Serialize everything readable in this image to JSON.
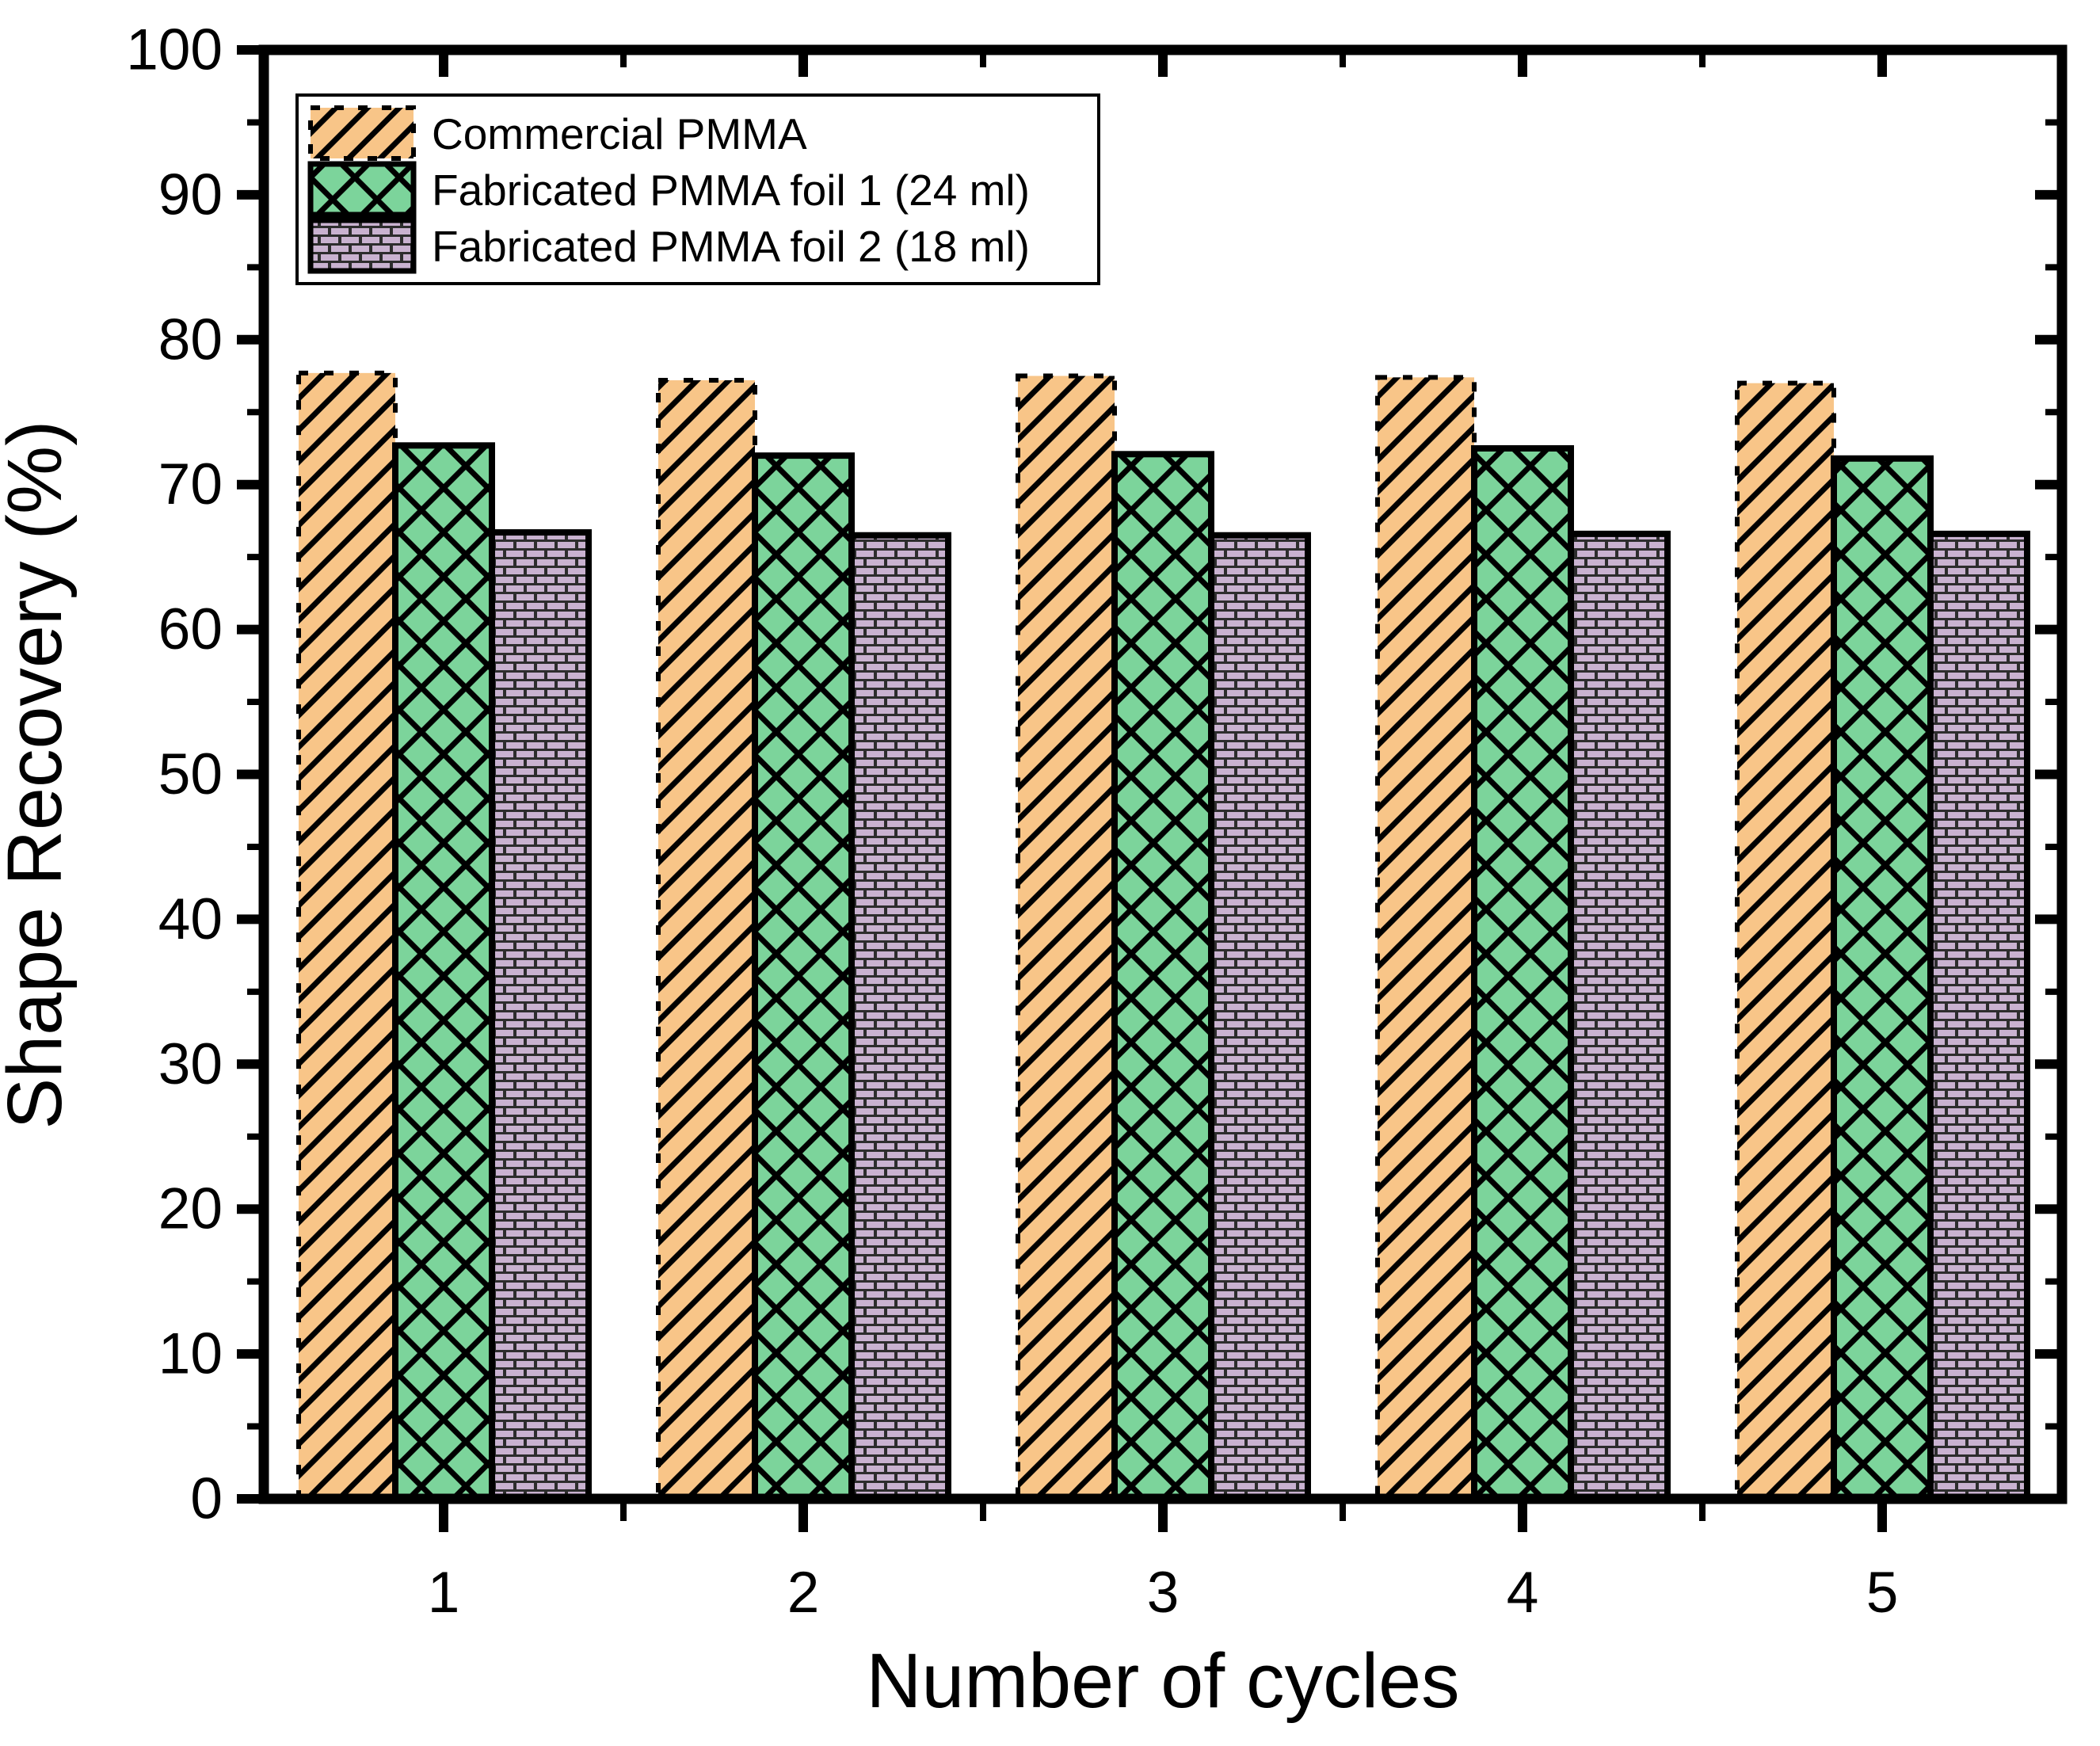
{
  "figure": {
    "background": "#ffffff",
    "axis_color": "#000000",
    "text_color": "#000000"
  },
  "chart_data": {
    "type": "bar",
    "title": "",
    "xlabel": "Number of cycles",
    "ylabel": "Shape Recovery (%)",
    "categories": [
      "1",
      "2",
      "3",
      "4",
      "5"
    ],
    "series": [
      {
        "name": "Commercial PMMA",
        "values": [
          77.7,
          77.2,
          77.5,
          77.4,
          77.0
        ],
        "fill": "#F8C588",
        "pattern": "diagonal-hatch",
        "border": "dashed"
      },
      {
        "name": "Fabricated PMMA foil 1 (24 ml)",
        "values": [
          72.7,
          72.0,
          72.1,
          72.5,
          71.8
        ],
        "fill": "#7CD49B",
        "pattern": "crosshatch",
        "border": "solid"
      },
      {
        "name": "Fabricated PMMA foil 2 (18 ml)",
        "values": [
          66.7,
          66.5,
          66.5,
          66.6,
          66.6
        ],
        "fill": "#C9B2D0",
        "pattern": "brick",
        "mortar_color": "#2d2d2d",
        "border": "solid"
      }
    ],
    "ylim": [
      0,
      100
    ],
    "ytick_major_step": 10,
    "ytick_minor_step": 5,
    "grid": false,
    "legend_position": "top-left",
    "frame": "full-box"
  }
}
